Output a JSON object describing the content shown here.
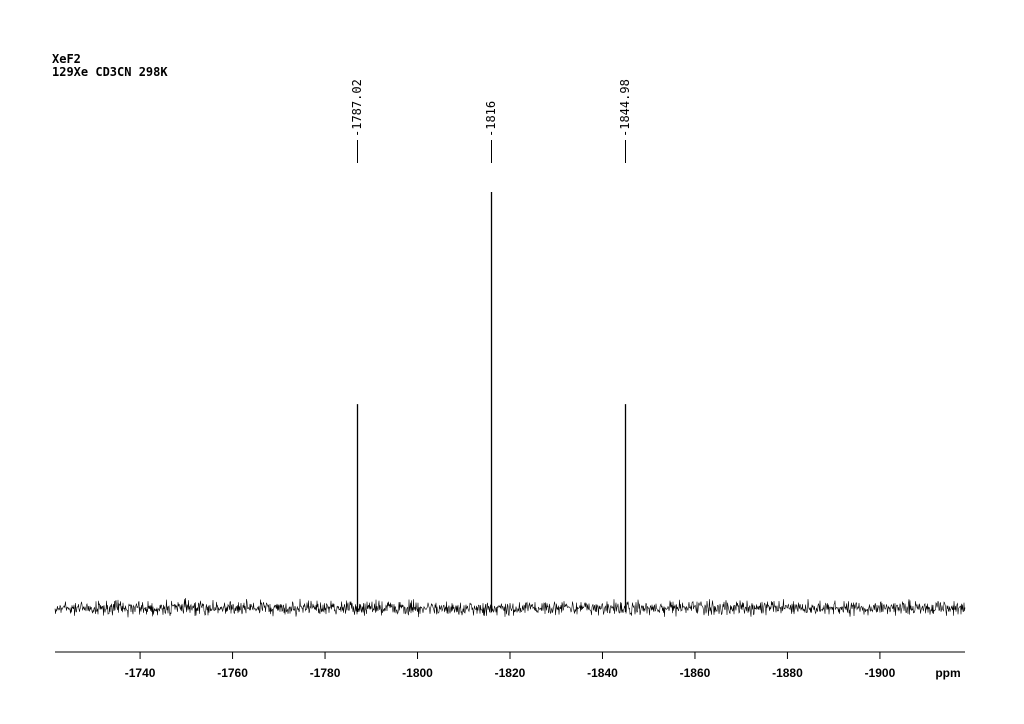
{
  "chart_data": {
    "type": "line",
    "title": "XeF2",
    "subtitle": "129Xe CD3CN 298K",
    "x": [
      -1787.02,
      -1816.0,
      -1844.98
    ],
    "values": [
      49,
      100,
      49
    ],
    "color": "#000000",
    "xlim": [
      -1721.6,
      -1918.4
    ],
    "xticks": [
      -1740,
      -1760,
      -1780,
      -1800,
      -1820,
      -1840,
      -1860,
      -1880,
      -1900
    ],
    "xlabel": "ppm"
  }
}
